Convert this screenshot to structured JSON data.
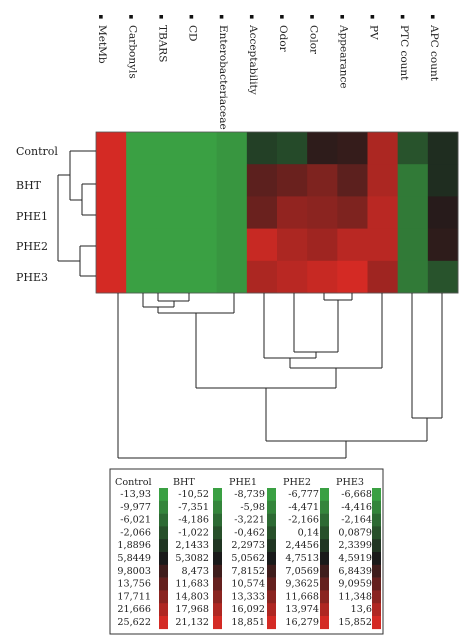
{
  "chart_data": {
    "type": "heatmap",
    "columns": [
      "MetMb",
      "Carbonyls",
      "TBARS",
      "CD",
      "Enterobacteriaceae",
      "Acceptability",
      "Odor",
      "Color",
      "Appearance",
      "PV",
      "PTC count",
      "APC count"
    ],
    "rows": [
      "Control",
      "BHT",
      "PHE1",
      "PHE2",
      "PHE3"
    ],
    "color_scale": {
      "low": "#3aa043",
      "mid": "#1a1a1a",
      "high": "#d42a24"
    },
    "values_z": [
      [
        3.0,
        -1.4,
        -1.4,
        -1.4,
        -1.3,
        -0.4,
        -0.5,
        0.15,
        0.2,
        1.1,
        -0.6,
        -0.2
      ],
      [
        3.0,
        -1.4,
        -1.4,
        -1.4,
        -1.3,
        0.5,
        0.6,
        0.75,
        0.5,
        1.1,
        -1.0,
        -0.2
      ],
      [
        3.0,
        -1.4,
        -1.4,
        -1.4,
        -1.3,
        0.6,
        0.9,
        0.85,
        0.75,
        1.2,
        -1.0,
        0.1
      ],
      [
        3.0,
        -1.4,
        -1.4,
        -1.4,
        -1.3,
        1.3,
        1.1,
        1.0,
        1.2,
        1.2,
        -1.0,
        0.15
      ],
      [
        3.0,
        -1.4,
        -1.4,
        -1.4,
        -1.3,
        1.1,
        1.2,
        1.3,
        1.45,
        1.0,
        -1.0,
        -0.6
      ]
    ],
    "legend": {
      "headers": [
        "Control",
        "BHT",
        "PHE1",
        "PHE2",
        "PHE3"
      ],
      "columns": [
        [
          "-13,93",
          "-9,977",
          "-6,021",
          "-2,066",
          "1,8896",
          "5,8449",
          "9,8003",
          "13,756",
          "17,711",
          "21,666",
          "25,622"
        ],
        [
          "-10,52",
          "-7,351",
          "-4,186",
          "-1,022",
          "2,1433",
          "5,3082",
          "8,473",
          "11,683",
          "14,803",
          "17,968",
          "21,132"
        ],
        [
          "-8,739",
          "-5,98",
          "-3,221",
          "-0,462",
          "2,2973",
          "5,0562",
          "7,8152",
          "10,574",
          "13,333",
          "16,092",
          "18,851"
        ],
        [
          "-6,777",
          "-4,471",
          "-2,166",
          "0,14",
          "2,4456",
          "4,7513",
          "7,0569",
          "9,3625",
          "11,668",
          "13,974",
          "16,279"
        ],
        [
          "-6,668",
          "-4,416",
          "-2,164",
          "0,0879",
          "2,3399",
          "4,5919",
          "6,8439",
          "9,0959",
          "11,348",
          "13,6",
          "15,852"
        ]
      ]
    },
    "row_dendrogram": "((Control,(BHT,PHE1)),(PHE2,PHE3))",
    "column_dendrogram": "((((Carbonyls,(TBARS,CD)),Enterobacteriaceae),((Acceptability,(Odor,(Color,Appearance))),PV)),(PTC count,APC count))"
  }
}
